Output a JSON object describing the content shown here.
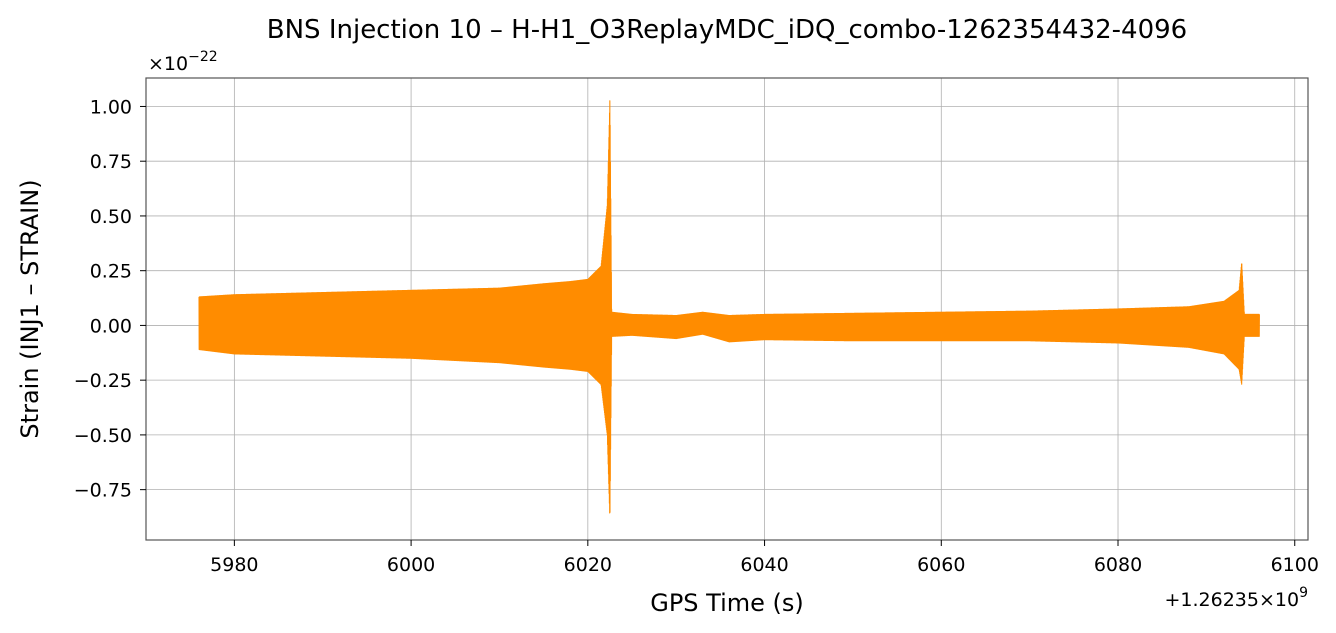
{
  "chart_data": {
    "type": "line",
    "title": "BNS Injection 10 – H-H1_O3ReplayMDC_iDQ_combo-1262354432-4096",
    "xlabel": "GPS Time (s)",
    "ylabel": "Strain (INJ1 – STRAIN)",
    "x_offset_label": "+1.26235×10",
    "x_offset_exp": "9",
    "y_scale_label": "×10",
    "y_scale_exp": "−22",
    "xlim": [
      5970,
      6101.5
    ],
    "ylim": [
      -0.98,
      1.13
    ],
    "xticks": [
      5980,
      6000,
      6020,
      6040,
      6060,
      6080,
      6100
    ],
    "xtick_labels": [
      "5980",
      "6000",
      "6020",
      "6040",
      "6060",
      "6080",
      "6100"
    ],
    "yticks": [
      -0.75,
      -0.5,
      -0.25,
      0.0,
      0.25,
      0.5,
      0.75,
      1.0
    ],
    "ytick_labels": [
      "−0.75",
      "−0.50",
      "−0.25",
      "0.00",
      "0.25",
      "0.50",
      "0.75",
      "1.00"
    ],
    "grid": true,
    "color": "#ff8c00",
    "series": [
      {
        "envelope_upper": [
          [
            5976,
            0.13
          ],
          [
            5980,
            0.14
          ],
          [
            5990,
            0.15
          ],
          [
            6000,
            0.16
          ],
          [
            6010,
            0.17
          ],
          [
            6015,
            0.19
          ],
          [
            6018,
            0.2
          ],
          [
            6020,
            0.21
          ],
          [
            6021.5,
            0.27
          ],
          [
            6022.2,
            0.55
          ],
          [
            6022.5,
            1.04
          ],
          [
            6022.7,
            0.06
          ],
          [
            6025,
            0.05
          ],
          [
            6030,
            0.045
          ],
          [
            6033,
            0.06
          ],
          [
            6036,
            0.045
          ],
          [
            6040,
            0.05
          ],
          [
            6050,
            0.055
          ],
          [
            6060,
            0.06
          ],
          [
            6070,
            0.065
          ],
          [
            6080,
            0.075
          ],
          [
            6088,
            0.085
          ],
          [
            6092,
            0.11
          ],
          [
            6093.7,
            0.16
          ],
          [
            6094,
            0.29
          ],
          [
            6094.3,
            0.05
          ],
          [
            6096,
            0.05
          ]
        ],
        "envelope_lower": [
          [
            5976,
            -0.11
          ],
          [
            5980,
            -0.13
          ],
          [
            5990,
            -0.14
          ],
          [
            6000,
            -0.15
          ],
          [
            6010,
            -0.17
          ],
          [
            6015,
            -0.19
          ],
          [
            6018,
            -0.2
          ],
          [
            6020,
            -0.21
          ],
          [
            6021.5,
            -0.27
          ],
          [
            6022.2,
            -0.5
          ],
          [
            6022.5,
            -0.89
          ],
          [
            6022.7,
            -0.05
          ],
          [
            6025,
            -0.045
          ],
          [
            6030,
            -0.06
          ],
          [
            6033,
            -0.04
          ],
          [
            6036,
            -0.075
          ],
          [
            6040,
            -0.065
          ],
          [
            6050,
            -0.07
          ],
          [
            6060,
            -0.07
          ],
          [
            6070,
            -0.07
          ],
          [
            6080,
            -0.08
          ],
          [
            6088,
            -0.1
          ],
          [
            6092,
            -0.13
          ],
          [
            6093.7,
            -0.2
          ],
          [
            6094,
            -0.27
          ],
          [
            6094.3,
            -0.05
          ],
          [
            6096,
            -0.05
          ]
        ]
      }
    ]
  }
}
